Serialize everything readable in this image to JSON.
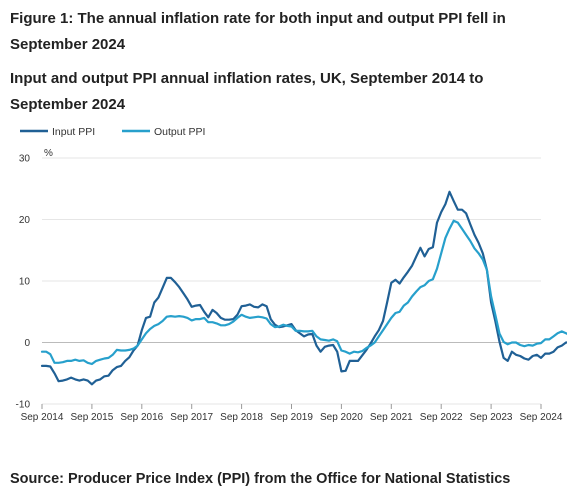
{
  "figure": {
    "title": "Figure 1: The annual inflation rate for both input and output PPI fell in September 2024",
    "subtitle": "Input and output PPI annual inflation rates, UK, September 2014 to September 2024",
    "source": "Source: Producer Price Index (PPI) from the Office for National Statistics"
  },
  "chart_data": {
    "type": "line",
    "title": "Input and output PPI annual inflation rates, UK, September 2014 to September 2024",
    "xlabel": "",
    "ylabel": "%",
    "x_start": "Sep 2014",
    "x_end": "Sep 2024",
    "x_ticks": [
      "Sep 2014",
      "Sep 2015",
      "Sep 2016",
      "Sep 2017",
      "Sep 2018",
      "Sep 2019",
      "Sep 2020",
      "Sep 2021",
      "Sep 2022",
      "Sep 2023",
      "Sep 2024"
    ],
    "y_ticks": [
      30,
      20,
      10,
      0,
      -10
    ],
    "ylim": [
      -10,
      30
    ],
    "grid": true,
    "legend_position": "top-left",
    "series": [
      {
        "name": "Input PPI",
        "color": "#206095",
        "values": [
          -3.8,
          -3.8,
          -3.9,
          -5.0,
          -6.3,
          -6.2,
          -6.0,
          -5.7,
          -6.0,
          -6.2,
          -6.0,
          -6.2,
          -6.8,
          -6.2,
          -6.0,
          -5.5,
          -5.4,
          -4.5,
          -4.0,
          -3.8,
          -3.0,
          -2.4,
          -1.3,
          -0.5,
          2.0,
          4.0,
          4.2,
          6.5,
          7.3,
          8.9,
          10.5,
          10.5,
          9.8,
          9.0,
          8.0,
          7.0,
          5.8,
          6.0,
          6.1,
          5.0,
          4.1,
          5.3,
          4.8,
          4.0,
          3.7,
          3.7,
          3.8,
          4.5,
          5.9,
          6.0,
          6.2,
          5.8,
          5.7,
          6.2,
          5.9,
          3.8,
          2.9,
          2.5,
          2.6,
          2.8,
          3.0,
          2.0,
          1.5,
          1.0,
          1.3,
          1.4,
          -0.5,
          -1.5,
          -0.7,
          -0.5,
          -0.4,
          -1.5,
          -4.7,
          -4.6,
          -3.0,
          -3.0,
          -3.0,
          -2.1,
          -1.2,
          -0.2,
          1.0,
          2.0,
          3.5,
          6.5,
          9.7,
          10.2,
          9.6,
          10.6,
          11.5,
          12.5,
          14.0,
          15.4,
          14.0,
          15.2,
          15.5,
          19.5,
          21.2,
          22.5,
          24.5,
          23.0,
          21.6,
          21.6,
          21.0,
          19.2,
          17.5,
          16.2,
          14.5,
          11.8,
          6.5,
          3.5,
          0.2,
          -2.5,
          -3.0,
          -1.5,
          -2.0,
          -2.2,
          -2.6,
          -2.8,
          -2.2,
          -2.0,
          -2.5,
          -1.8,
          -1.8,
          -1.5,
          -0.8,
          -0.5,
          0.0,
          0.0,
          -1.3,
          -2.3
        ]
      },
      {
        "name": "Output PPI",
        "color": "#27a0cc",
        "values": [
          -1.5,
          -1.5,
          -1.9,
          -3.3,
          -3.3,
          -3.2,
          -3.0,
          -3.0,
          -2.8,
          -3.0,
          -2.9,
          -3.3,
          -3.5,
          -3.0,
          -2.8,
          -2.6,
          -2.5,
          -2.0,
          -1.2,
          -1.3,
          -1.3,
          -1.2,
          -1.0,
          -0.5,
          0.5,
          1.5,
          2.2,
          2.7,
          3.0,
          3.5,
          4.2,
          4.3,
          4.2,
          4.3,
          4.2,
          4.0,
          3.6,
          3.8,
          3.8,
          4.0,
          3.3,
          3.3,
          3.1,
          2.8,
          2.8,
          3.0,
          3.4,
          4.0,
          4.5,
          4.2,
          4.0,
          4.1,
          4.2,
          4.1,
          3.9,
          3.0,
          2.5,
          2.6,
          2.9,
          2.7,
          2.6,
          1.9,
          1.9,
          1.8,
          1.8,
          1.9,
          1.0,
          0.5,
          0.4,
          0.3,
          0.5,
          0.2,
          -1.3,
          -1.5,
          -1.8,
          -1.5,
          -1.6,
          -1.4,
          -0.9,
          -0.5,
          0.0,
          1.0,
          2.0,
          3.0,
          4.0,
          4.8,
          5.0,
          6.0,
          6.5,
          7.5,
          8.3,
          9.0,
          9.3,
          10.0,
          10.3,
          12.0,
          14.5,
          17.0,
          18.5,
          19.8,
          19.5,
          18.5,
          17.5,
          16.5,
          15.3,
          14.5,
          13.5,
          11.8,
          7.5,
          4.5,
          1.5,
          0.1,
          -0.3,
          0.0,
          0.0,
          -0.4,
          -0.6,
          -0.4,
          -0.5,
          -0.2,
          -0.1,
          0.5,
          0.5,
          1.0,
          1.5,
          1.8,
          1.5,
          1.2,
          0.6,
          -0.5
        ]
      }
    ]
  }
}
